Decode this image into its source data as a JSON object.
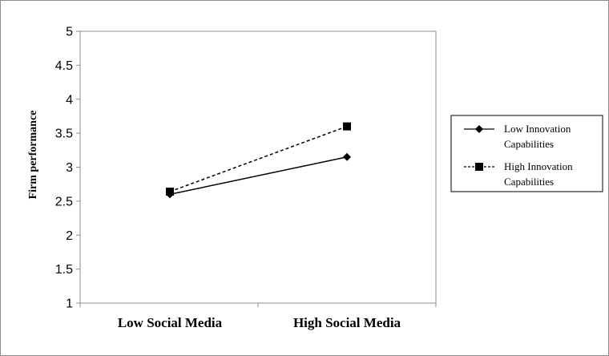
{
  "chart_data": {
    "type": "line",
    "title": "",
    "xlabel": "",
    "ylabel": "Firm performance",
    "categories": [
      "Low Social Media",
      "High Social Media"
    ],
    "ylim": [
      1,
      5
    ],
    "yticks": [
      "1",
      "1.5",
      "2",
      "2.5",
      "3",
      "3.5",
      "4",
      "4.5",
      "5"
    ],
    "grid": false,
    "legend_position": "right",
    "series": [
      {
        "name_lines": [
          "Low Innovation",
          "Capabilities"
        ],
        "values": [
          2.6,
          3.15
        ],
        "marker": "diamond",
        "line_style": "solid",
        "color": "#000000"
      },
      {
        "name_lines": [
          "High Innovation",
          "Capabilities"
        ],
        "values": [
          2.64,
          3.6
        ],
        "marker": "square",
        "line_style": "dashed",
        "color": "#000000"
      }
    ]
  }
}
